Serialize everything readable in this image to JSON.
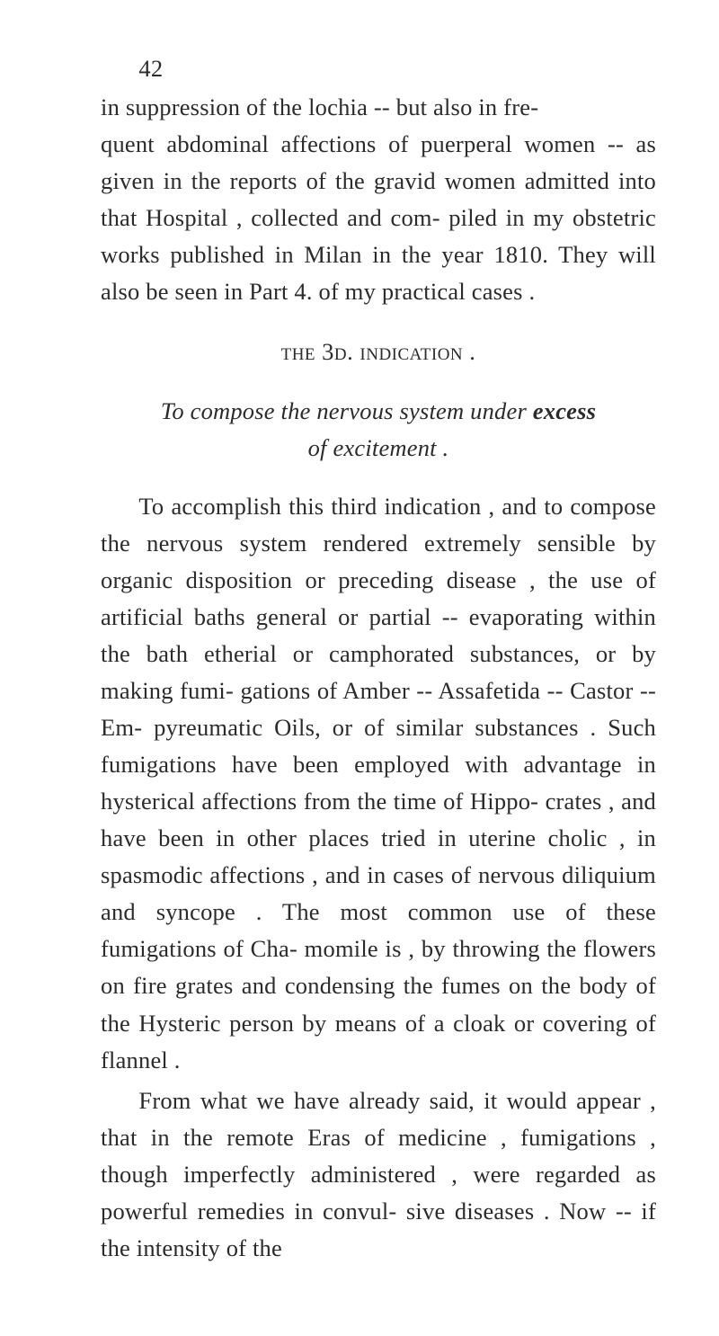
{
  "pagenum": "42",
  "para1_a": "in suppression of the lochia -- but also in fre-",
  "para1_b": "quent abdominal affections of puerperal women -- as given in the reports of the gravid women admitted into that Hospital , collected and com- piled in my obstetric works published in Milan in the year 1810. They will also be seen in Part 4. of my practical cases .",
  "heading_a": "the",
  "heading_b": " 3d. ",
  "heading_c": "indication .",
  "sub_line1_a": "To compose the nervous system under",
  "sub_line1_b": " excess",
  "sub_line2": "of excitement .",
  "para2": "To accomplish this third indication , and to compose the nervous system rendered extremely sensible by organic disposition or preceding disease , the use of artificial baths general or partial -- evaporating within the bath etherial or camphorated substances, or by making fumi- gations of Amber -- Assafetida -- Castor -- Em- pyreumatic Oils, or of similar substances . Such fumigations have been employed with advantage in hysterical affections from the time of Hippo- crates , and have been in other places tried in uterine cholic , in spasmodic affections , and in cases of nervous diliquium and syncope . The most common use of these fumigations of Cha- momile is , by throwing the flowers on fire grates and condensing the fumes on the body of the Hysteric person by means of a cloak or covering of flannel .",
  "para3": "From what we have already said, it would appear , that in the remote Eras of medicine , fumigations , though imperfectly administered , were regarded as powerful remedies in convul- sive diseases . Now -- if the intensity of the"
}
